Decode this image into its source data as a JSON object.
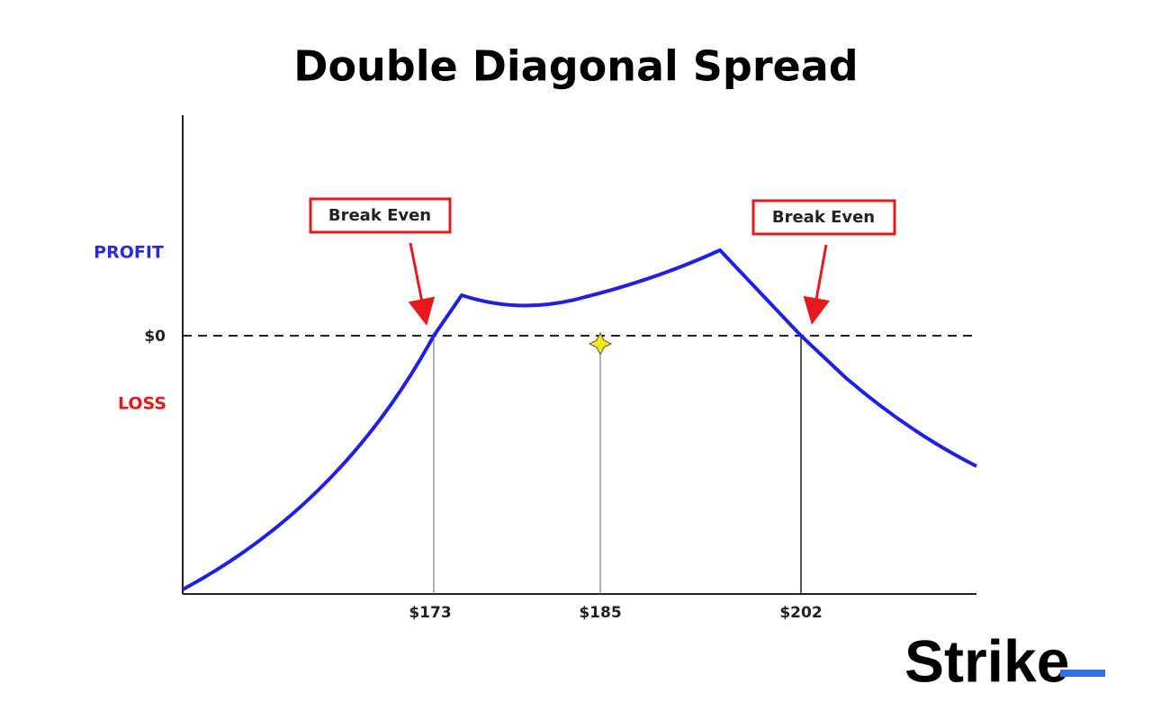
{
  "title": "Double Diagonal Spread",
  "y_labels": {
    "profit": "PROFIT",
    "zero": "$0",
    "loss": "LOSS"
  },
  "x_labels": [
    "$173",
    "$185",
    "$202"
  ],
  "annotations": [
    "Break Even",
    "Break Even"
  ],
  "logo": "Strike"
}
